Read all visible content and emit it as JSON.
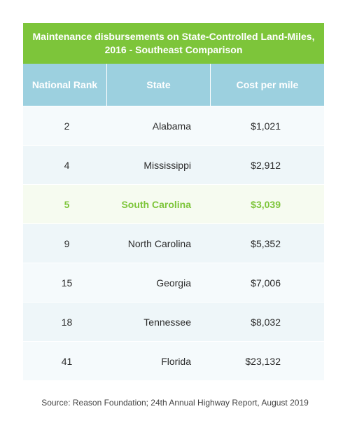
{
  "chart_data": {
    "type": "table",
    "title": "Maintenance disbursements on State-Controlled Land-Miles, 2016 - Southeast Comparison",
    "columns": [
      "National Rank",
      "State",
      "Cost per mile"
    ],
    "rows": [
      {
        "rank": "2",
        "state": "Alabama",
        "cost": "$1,021"
      },
      {
        "rank": "4",
        "state": "Mississippi",
        "cost": "$2,912"
      },
      {
        "rank": "5",
        "state": "South Carolina",
        "cost": "$3,039",
        "highlight": true
      },
      {
        "rank": "9",
        "state": "North Carolina",
        "cost": "$5,352"
      },
      {
        "rank": "15",
        "state": "Georgia",
        "cost": "$7,006"
      },
      {
        "rank": "18",
        "state": "Tennessee",
        "cost": "$8,032"
      },
      {
        "rank": "41",
        "state": "Florida",
        "cost": "$23,132"
      }
    ],
    "source": "Source: Reason Foundation; 24th Annual Highway Report, August 2019"
  },
  "colors": {
    "title_bg": "#7dc53a",
    "header_bg": "#9cd0df",
    "highlight_text": "#7dc53a"
  }
}
